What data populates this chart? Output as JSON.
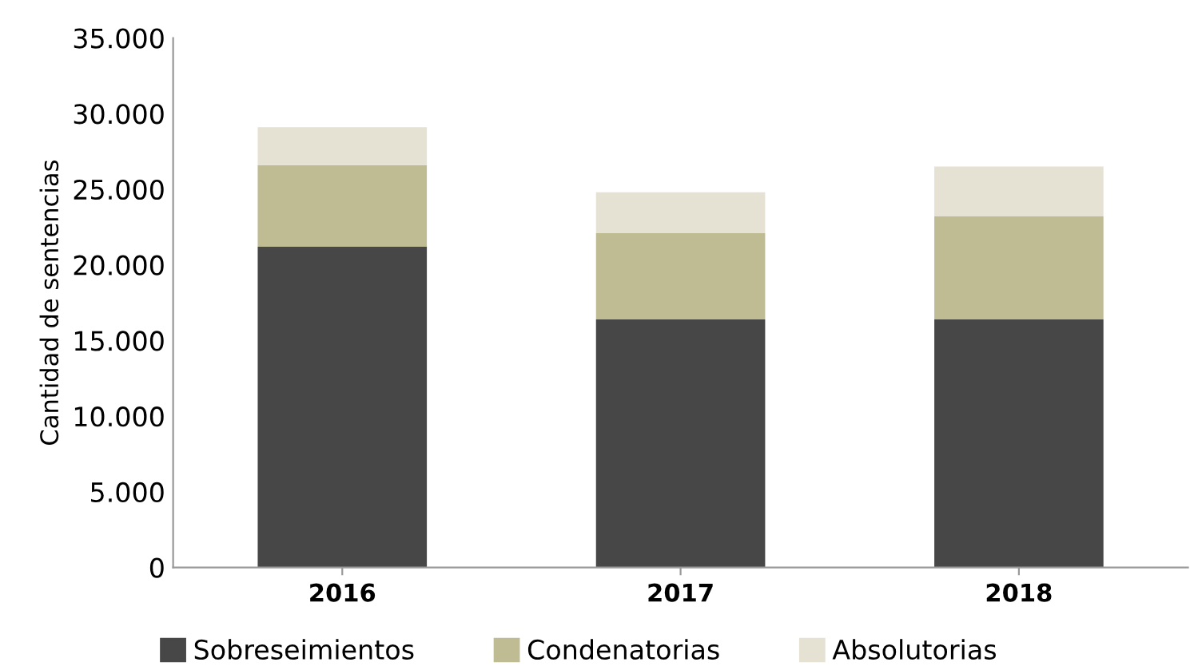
{
  "chart_data": {
    "type": "bar",
    "stacked": true,
    "ylabel": "Cantidad de sentencias",
    "categories": [
      "2016",
      "2017",
      "2018"
    ],
    "series": [
      {
        "name": "Sobreseimientos",
        "color": "#474747",
        "values": [
          21200,
          16400,
          16400
        ]
      },
      {
        "name": "Condenatorias",
        "color": "#bfbc94",
        "values": [
          5400,
          5700,
          6800
        ]
      },
      {
        "name": "Absolutorias",
        "color": "#e5e2d4",
        "values": [
          2500,
          2700,
          3300
        ]
      }
    ],
    "ylim": [
      0,
      35000
    ],
    "yticks": [
      {
        "value": 0,
        "label": "0"
      },
      {
        "value": 5000,
        "label": "5.000"
      },
      {
        "value": 10000,
        "label": "10.000"
      },
      {
        "value": 15000,
        "label": "15.000"
      },
      {
        "value": 20000,
        "label": "20.000"
      },
      {
        "value": 25000,
        "label": "25.000"
      },
      {
        "value": 30000,
        "label": "30.000"
      },
      {
        "value": 35000,
        "label": "35.000"
      }
    ],
    "grid": false,
    "legend": "bottom"
  }
}
